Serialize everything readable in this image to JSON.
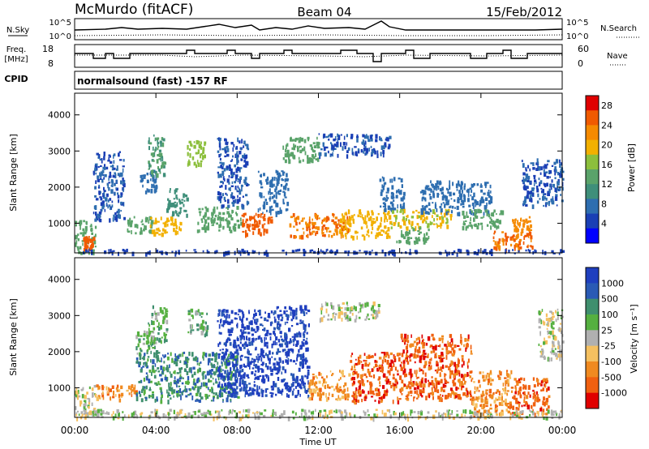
{
  "header": {
    "title": "McMurdo (fitACF)",
    "beam": "Beam 04",
    "date": "15/Feb/2012"
  },
  "summary_panels": {
    "nsky_label": "N.Sky",
    "nsearch_label": "N.Search",
    "freq_label_1": "Freq.",
    "freq_label_2": "[MHz]",
    "nave_label": "Nave",
    "cpid_label": "CPID",
    "noise_ticks": [
      "10^5",
      "10^0"
    ],
    "freq_ticks": [
      "18",
      "8"
    ],
    "nave_ticks": [
      "60",
      "0"
    ],
    "cpid_text": "normalsound (fast) -157 RF"
  },
  "chart_data": [
    {
      "type": "heatmap",
      "title": "",
      "quantity": "Power",
      "xlabel": "",
      "ylabel": "Slant Range [km]",
      "x_ticks": [
        "00:00",
        "04:00",
        "08:00",
        "12:00",
        "16:00",
        "20:00",
        "00:00"
      ],
      "xlim_hours": [
        0,
        24
      ],
      "y_ticks": [
        1000,
        2000,
        3000,
        4000
      ],
      "ylim_km": [
        180,
        4600
      ],
      "colorbar": {
        "label": "Power [dB]",
        "ticks": [
          4,
          8,
          12,
          16,
          20,
          24,
          28
        ],
        "range": [
          0,
          30
        ],
        "colors": [
          "#0000ff",
          "#1a3fb5",
          "#2e6eb0",
          "#3f8f7a",
          "#5aa36a",
          "#8cbf3c",
          "#f2b000",
          "#f58a00",
          "#f05a00",
          "#e00000"
        ]
      },
      "patches": [
        {
          "t0": 0.0,
          "t1": 1.0,
          "r0": 200,
          "r1": 1100,
          "value": 14
        },
        {
          "t0": 0.4,
          "t1": 0.9,
          "r0": 300,
          "r1": 650,
          "value": 26
        },
        {
          "t0": 0.9,
          "t1": 2.4,
          "r0": 1100,
          "r1": 3000,
          "value": 6
        },
        {
          "t0": 2.5,
          "t1": 3.8,
          "r0": 750,
          "r1": 1200,
          "value": 14
        },
        {
          "t0": 3.2,
          "t1": 4.0,
          "r0": 1900,
          "r1": 2500,
          "value": 8
        },
        {
          "t0": 3.6,
          "t1": 4.4,
          "r0": 2300,
          "r1": 3500,
          "value": 12
        },
        {
          "t0": 3.7,
          "t1": 5.2,
          "r0": 700,
          "r1": 1200,
          "value": 20
        },
        {
          "t0": 4.5,
          "t1": 5.5,
          "r0": 1200,
          "r1": 2000,
          "value": 10
        },
        {
          "t0": 5.5,
          "t1": 6.4,
          "r0": 2600,
          "r1": 3300,
          "value": 16
        },
        {
          "t0": 6.0,
          "t1": 8.2,
          "r0": 800,
          "r1": 1500,
          "value": 14
        },
        {
          "t0": 7.0,
          "t1": 8.5,
          "r0": 1500,
          "r1": 3400,
          "value": 6
        },
        {
          "t0": 8.2,
          "t1": 9.8,
          "r0": 700,
          "r1": 1300,
          "value": 26
        },
        {
          "t0": 9.0,
          "t1": 10.5,
          "r0": 1300,
          "r1": 2500,
          "value": 8
        },
        {
          "t0": 10.2,
          "t1": 12.0,
          "r0": 2700,
          "r1": 3400,
          "value": 14
        },
        {
          "t0": 10.5,
          "t1": 13.5,
          "r0": 650,
          "r1": 1300,
          "value": 24
        },
        {
          "t0": 12.0,
          "t1": 15.5,
          "r0": 2900,
          "r1": 3500,
          "value": 6
        },
        {
          "t0": 13.0,
          "t1": 15.5,
          "r0": 650,
          "r1": 1400,
          "value": 20
        },
        {
          "t0": 15.0,
          "t1": 16.2,
          "r0": 1400,
          "r1": 2300,
          "value": 8
        },
        {
          "t0": 15.5,
          "t1": 18.5,
          "r0": 900,
          "r1": 1400,
          "value": 18
        },
        {
          "t0": 15.8,
          "t1": 17.5,
          "r0": 500,
          "r1": 900,
          "value": 14
        },
        {
          "t0": 17.0,
          "t1": 20.5,
          "r0": 1300,
          "r1": 2200,
          "value": 8
        },
        {
          "t0": 19.0,
          "t1": 21.0,
          "r0": 900,
          "r1": 1400,
          "value": 14
        },
        {
          "t0": 20.5,
          "t1": 22.5,
          "r0": 300,
          "r1": 800,
          "value": 24
        },
        {
          "t0": 21.5,
          "t1": 22.5,
          "r0": 800,
          "r1": 1200,
          "value": 22
        },
        {
          "t0": 22.0,
          "t1": 24.0,
          "r0": 1500,
          "r1": 2800,
          "value": 6
        },
        {
          "t0": 0.0,
          "t1": 24.0,
          "r0": 190,
          "r1": 300,
          "value": 4
        }
      ]
    },
    {
      "type": "heatmap",
      "title": "",
      "quantity": "Velocity",
      "xlabel": "Time UT",
      "ylabel": "Slant Range [km]",
      "x_ticks": [
        "00:00",
        "04:00",
        "08:00",
        "12:00",
        "16:00",
        "20:00",
        "00:00"
      ],
      "xlim_hours": [
        0,
        24
      ],
      "y_ticks": [
        1000,
        2000,
        3000,
        4000
      ],
      "ylim_km": [
        180,
        4600
      ],
      "colorbar": {
        "label": "Velocity [m s⁻¹]",
        "ticks": [
          "1000",
          "500",
          "100",
          "25",
          "-25",
          "-100",
          "-500",
          "-1000"
        ],
        "colors": [
          "#1f3fbf",
          "#2a5ab5",
          "#3f8f6e",
          "#55b040",
          "#b0b0b0",
          "#f5c060",
          "#f08a20",
          "#f06010",
          "#e00000"
        ]
      },
      "patches": [
        {
          "t0": 0.0,
          "t1": 1.0,
          "r0": 300,
          "r1": 1100,
          "value": 4
        },
        {
          "t0": 1.0,
          "t1": 3.0,
          "r0": 700,
          "r1": 1100,
          "value": 6
        },
        {
          "t0": 3.0,
          "t1": 4.0,
          "r0": 1900,
          "r1": 2600,
          "value": 3
        },
        {
          "t0": 3.0,
          "t1": 8.0,
          "r0": 650,
          "r1": 2000,
          "value": 2
        },
        {
          "t0": 3.5,
          "t1": 4.5,
          "r0": 2300,
          "r1": 3300,
          "value": 3
        },
        {
          "t0": 5.5,
          "t1": 6.5,
          "r0": 2500,
          "r1": 3200,
          "value": 3
        },
        {
          "t0": 7.0,
          "t1": 9.8,
          "r0": 800,
          "r1": 3200,
          "value": 0
        },
        {
          "t0": 9.8,
          "t1": 11.5,
          "r0": 800,
          "r1": 3300,
          "value": 0
        },
        {
          "t0": 11.5,
          "t1": 13.5,
          "r0": 700,
          "r1": 1500,
          "value": 6
        },
        {
          "t0": 12.0,
          "t1": 15.0,
          "r0": 2900,
          "r1": 3400,
          "value": 4
        },
        {
          "t0": 13.5,
          "t1": 16.0,
          "r0": 650,
          "r1": 2000,
          "value": 7
        },
        {
          "t0": 16.0,
          "t1": 19.5,
          "r0": 700,
          "r1": 2500,
          "value": 7
        },
        {
          "t0": 19.5,
          "t1": 21.5,
          "r0": 300,
          "r1": 1500,
          "value": 6
        },
        {
          "t0": 21.5,
          "t1": 23.3,
          "r0": 300,
          "r1": 1300,
          "value": 7
        },
        {
          "t0": 22.8,
          "t1": 24.0,
          "r0": 1800,
          "r1": 3200,
          "value": 4
        },
        {
          "t0": 0.0,
          "t1": 24.0,
          "r0": 190,
          "r1": 420,
          "value": 4
        }
      ]
    }
  ]
}
